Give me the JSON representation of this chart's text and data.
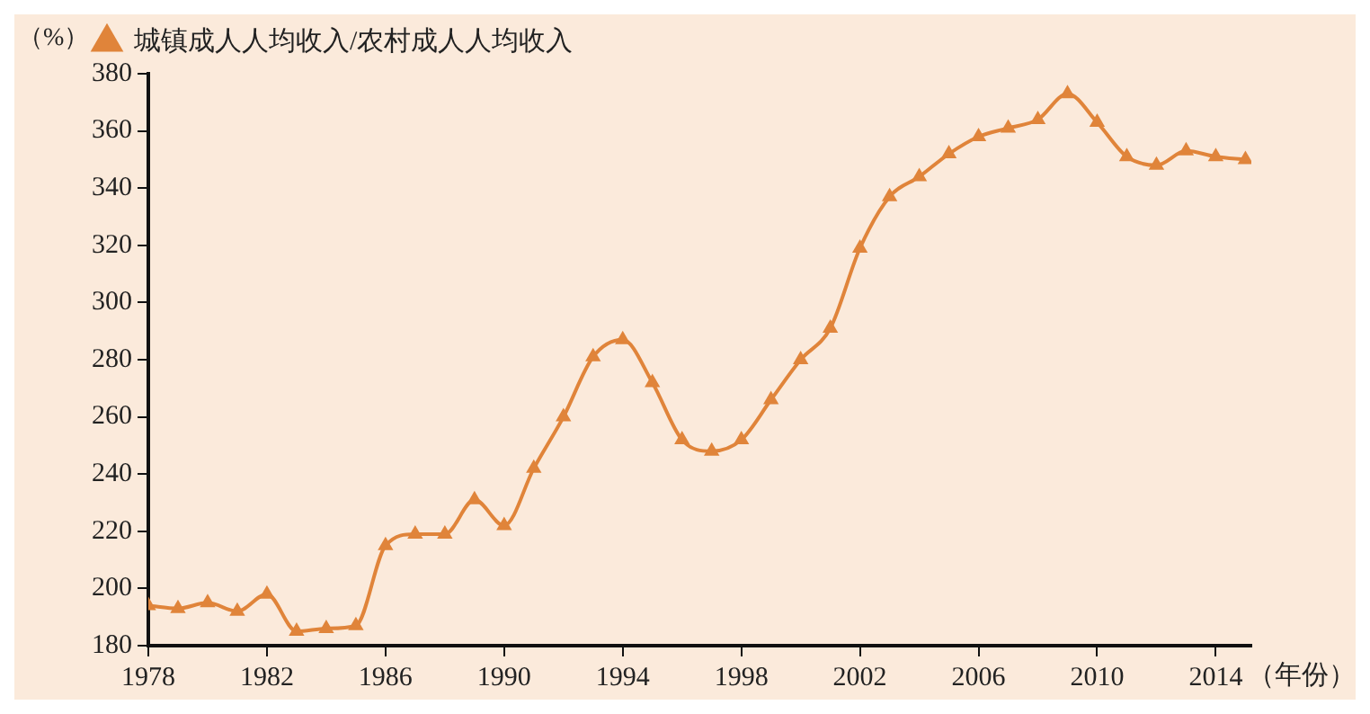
{
  "chart_data": {
    "type": "line",
    "ylabel": "（%）",
    "xlabel": "（年份）",
    "x": [
      1978,
      1979,
      1980,
      1981,
      1982,
      1983,
      1984,
      1985,
      1986,
      1987,
      1988,
      1989,
      1990,
      1991,
      1992,
      1993,
      1994,
      1995,
      1996,
      1997,
      1998,
      1999,
      2000,
      2001,
      2002,
      2003,
      2004,
      2005,
      2006,
      2007,
      2008,
      2009,
      2010,
      2011,
      2012,
      2013,
      2014,
      2015
    ],
    "series": [
      {
        "name": "城镇成人人均收入/农村成人人均收入",
        "color": "#e0843a",
        "values": [
          194,
          193,
          195,
          192,
          198,
          185,
          186,
          187,
          215,
          219,
          219,
          231,
          222,
          242,
          260,
          281,
          287,
          272,
          252,
          248,
          252,
          266,
          280,
          291,
          319,
          337,
          344,
          352,
          358,
          361,
          364,
          373,
          363,
          351,
          348,
          353,
          351,
          350
        ]
      }
    ],
    "xlim": [
      1978,
      2015.2
    ],
    "xticks": [
      1978,
      1982,
      1986,
      1990,
      1994,
      1998,
      2002,
      2006,
      2010,
      2014
    ],
    "ylim": [
      180,
      380
    ],
    "yticks": [
      180,
      200,
      220,
      240,
      260,
      280,
      300,
      320,
      340,
      360,
      380
    ],
    "grid": false,
    "legend": "top left",
    "marker": "triangle",
    "line_style": "solid"
  }
}
